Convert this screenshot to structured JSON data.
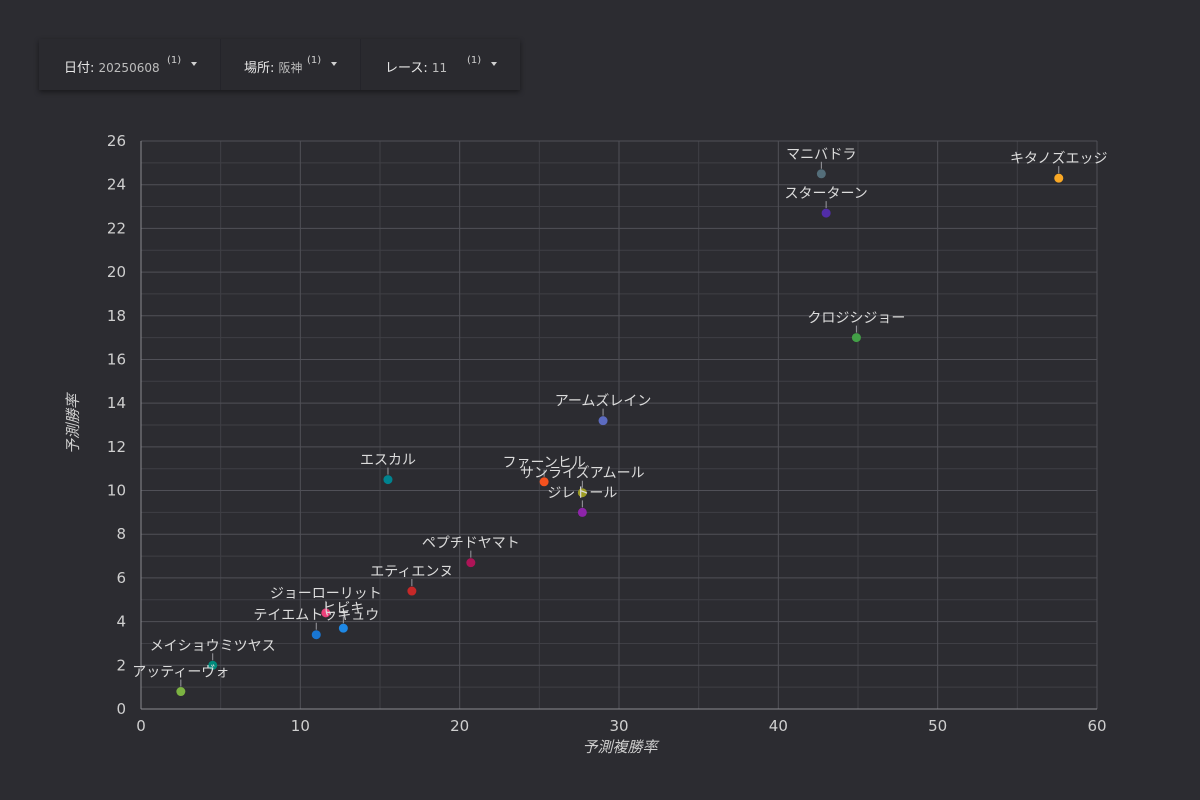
{
  "filters": [
    {
      "label": "日付",
      "value": "20250608",
      "count": "(1)"
    },
    {
      "label": "場所",
      "value": "阪神",
      "count": "(1)"
    },
    {
      "label": "レース",
      "value": "11",
      "count": "(1)"
    }
  ],
  "chart_data": {
    "type": "scatter",
    "xlabel": "予測複勝率",
    "ylabel": "予測勝率",
    "xlim": [
      0,
      60
    ],
    "ylim": [
      0,
      26
    ],
    "xticks": [
      0,
      10,
      20,
      30,
      40,
      50,
      60
    ],
    "yticks": [
      0,
      2,
      4,
      6,
      8,
      10,
      12,
      14,
      16,
      18,
      20,
      22,
      24,
      26
    ],
    "grid": true,
    "points": [
      {
        "name": "キタノズエッジ",
        "x": 57.6,
        "y": 24.3,
        "color": "#f9a825"
      },
      {
        "name": "マニバドラ",
        "x": 42.7,
        "y": 24.5,
        "color": "#546e7a"
      },
      {
        "name": "スターターン",
        "x": 43.0,
        "y": 22.7,
        "color": "#512da8"
      },
      {
        "name": "クロジシジョー",
        "x": 44.9,
        "y": 17.0,
        "color": "#43a047"
      },
      {
        "name": "アームズレイン",
        "x": 29.0,
        "y": 13.2,
        "color": "#5c6bc0"
      },
      {
        "name": "エスカル",
        "x": 15.5,
        "y": 10.5,
        "color": "#00838f"
      },
      {
        "name": "ファーンヒル",
        "x": 25.3,
        "y": 10.4,
        "color": "#f4511e"
      },
      {
        "name": "サンライズアムール",
        "x": 27.7,
        "y": 9.9,
        "color": "#9e9d24"
      },
      {
        "name": "ジレトール",
        "x": 27.7,
        "y": 9.0,
        "color": "#8e24aa"
      },
      {
        "name": "ペプチドヤマト",
        "x": 20.7,
        "y": 6.7,
        "color": "#ad1457"
      },
      {
        "name": "エティエンヌ",
        "x": 17.0,
        "y": 5.4,
        "color": "#c62828"
      },
      {
        "name": "ジョーローリット",
        "x": 11.6,
        "y": 4.4,
        "color": "#ec407a"
      },
      {
        "name": "ヒビキ",
        "x": 12.7,
        "y": 3.7,
        "color": "#1e88e5"
      },
      {
        "name": "テイエムトッキュウ",
        "x": 11.0,
        "y": 3.4,
        "color": "#1976d2"
      },
      {
        "name": "メイショウミツヤス",
        "x": 4.5,
        "y": 2.0,
        "color": "#00897b"
      },
      {
        "name": "アッティーヴォ",
        "x": 2.5,
        "y": 0.8,
        "color": "#7cb342"
      }
    ]
  }
}
